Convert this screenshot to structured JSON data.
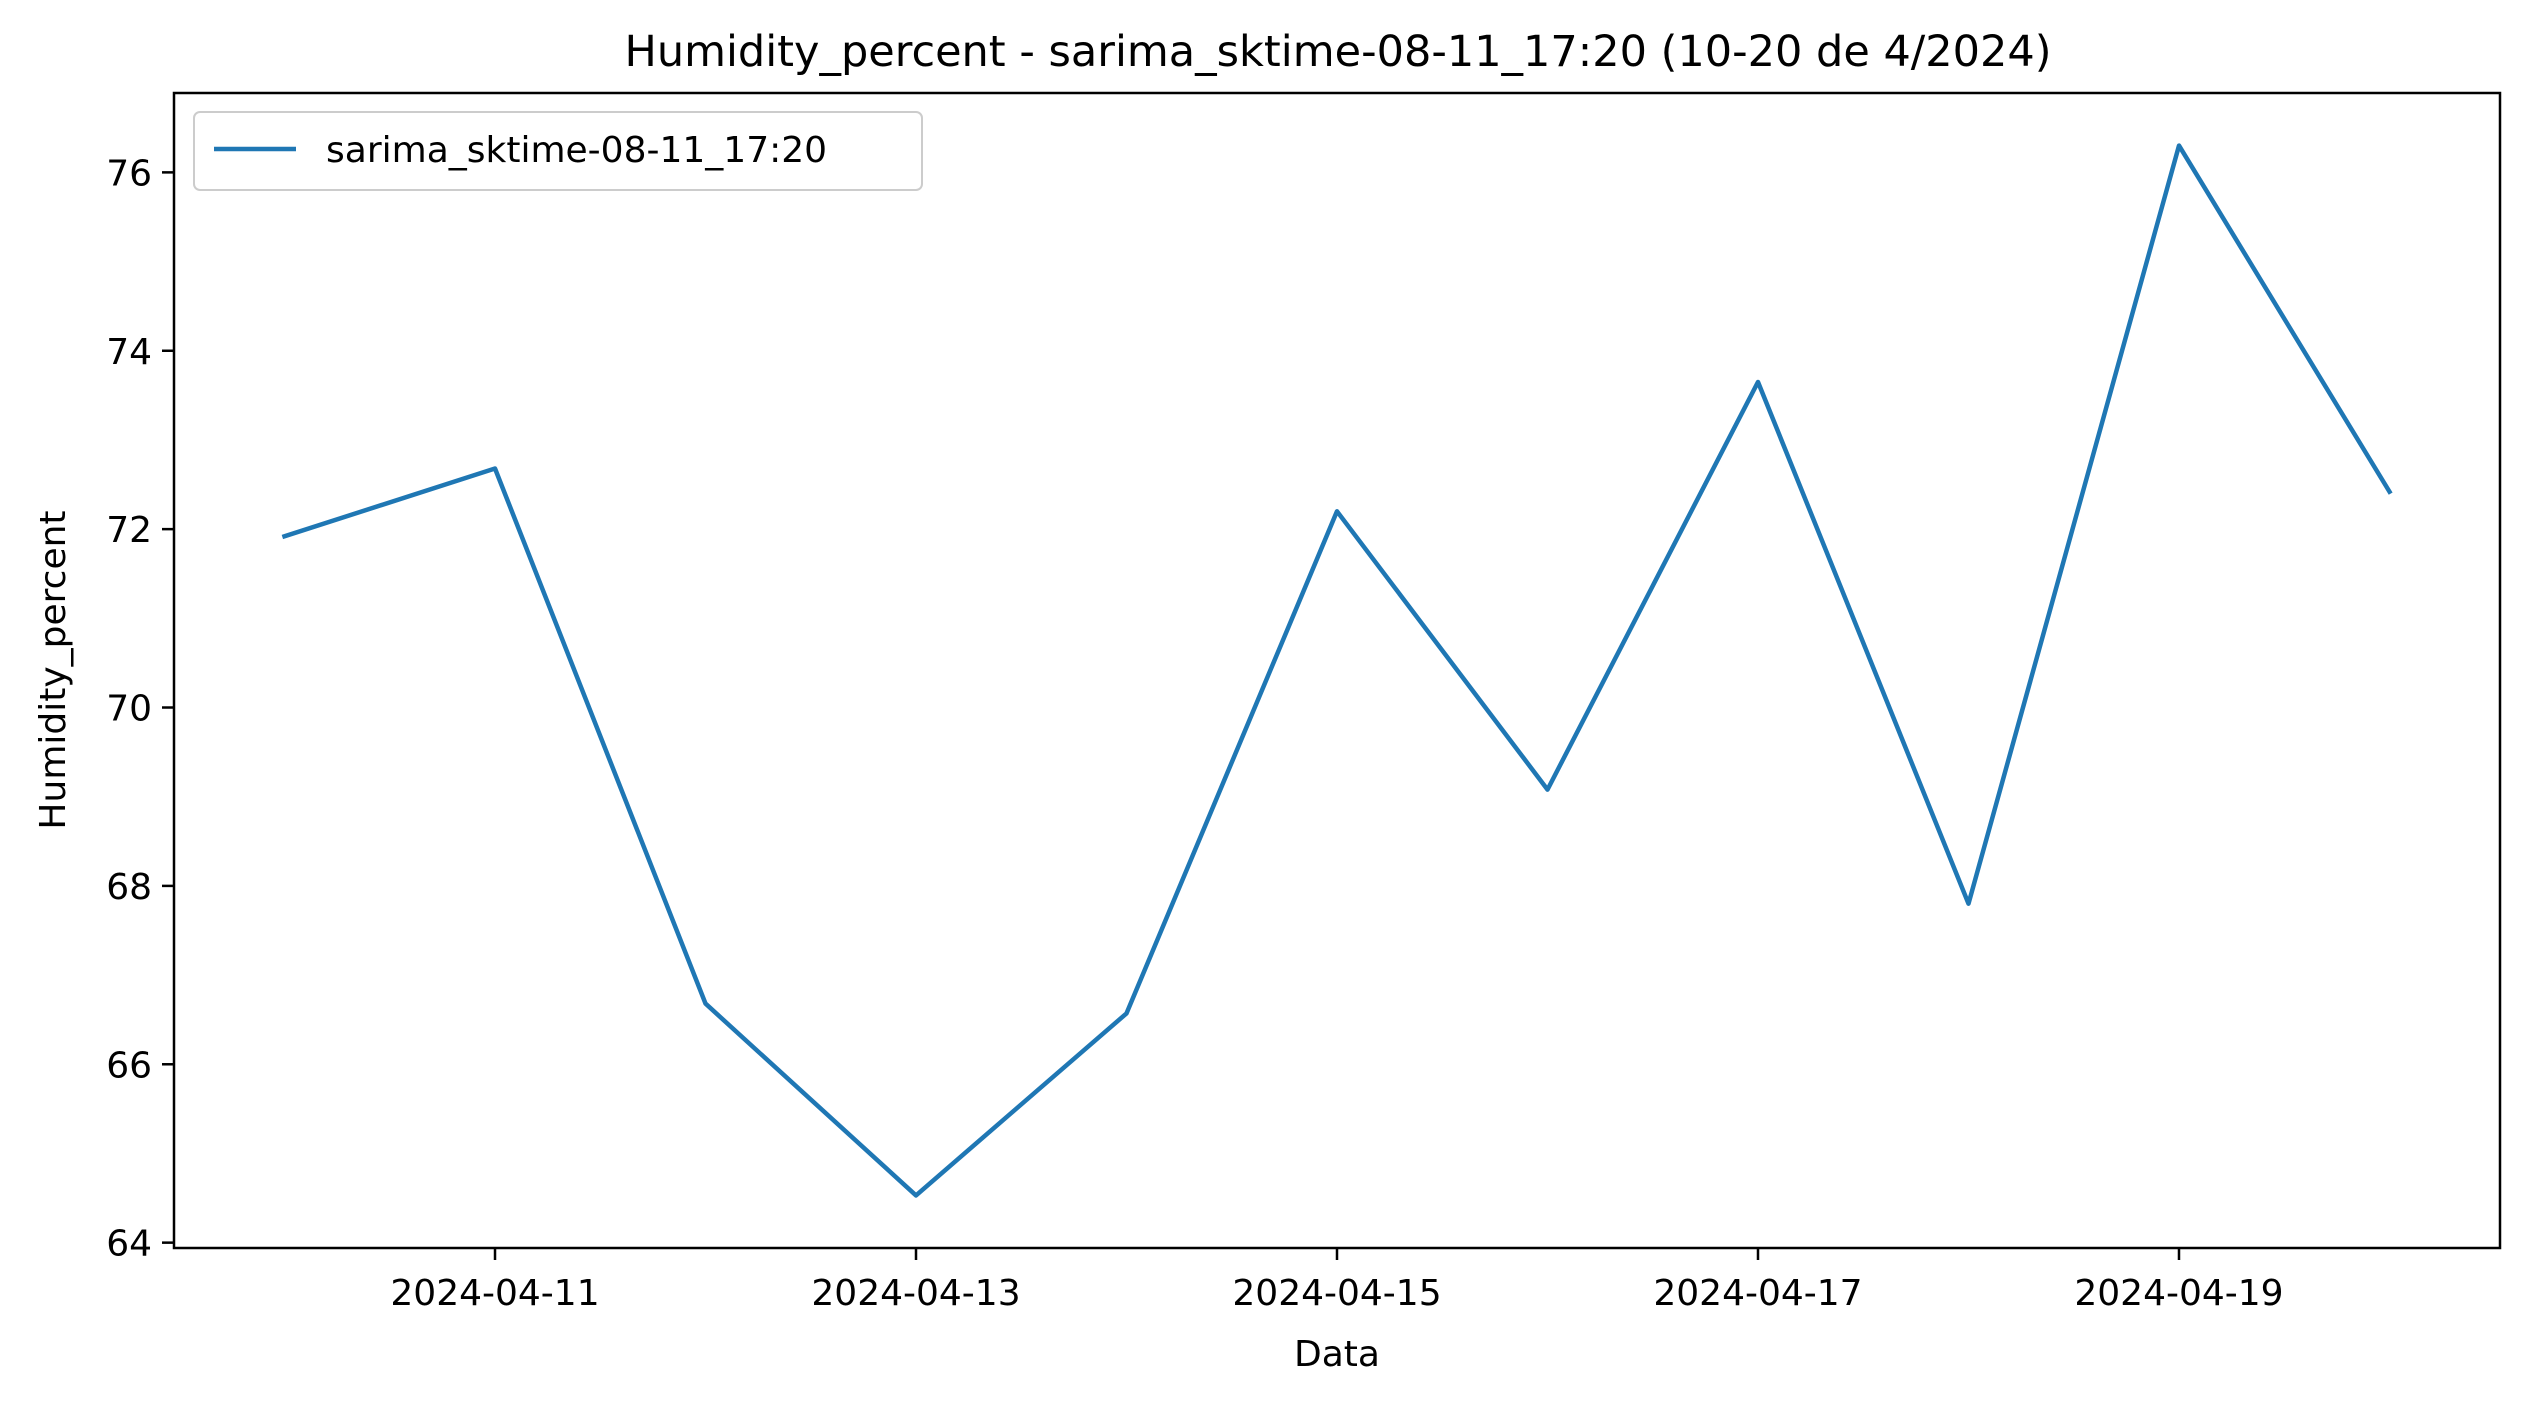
{
  "chart_data": {
    "type": "line",
    "title": "Humidity_percent - sarima_sktime-08-11_17:20 (10-20 de 4/2024)",
    "xlabel": "Data",
    "ylabel": "Humidity_percent",
    "x": [
      "2024-04-10",
      "2024-04-11",
      "2024-04-12",
      "2024-04-13",
      "2024-04-14",
      "2024-04-15",
      "2024-04-16",
      "2024-04-17",
      "2024-04-18",
      "2024-04-19",
      "2024-04-20"
    ],
    "series": [
      {
        "name": "sarima_sktime-08-11_17:20",
        "color": "#1f77b4",
        "values": [
          71.92,
          72.68,
          66.68,
          64.53,
          66.57,
          72.2,
          69.08,
          73.65,
          67.8,
          76.3,
          72.42
        ]
      }
    ],
    "xlim": [
      "2024-04-09T11:24",
      "2024-04-20T12:36"
    ],
    "ylim": [
      63.94,
      76.89
    ],
    "x_ticks": [
      "2024-04-11",
      "2024-04-13",
      "2024-04-15",
      "2024-04-17",
      "2024-04-19"
    ],
    "y_ticks": [
      64,
      66,
      68,
      70,
      72,
      74,
      76
    ],
    "grid": false,
    "legend_position": "upper left"
  }
}
